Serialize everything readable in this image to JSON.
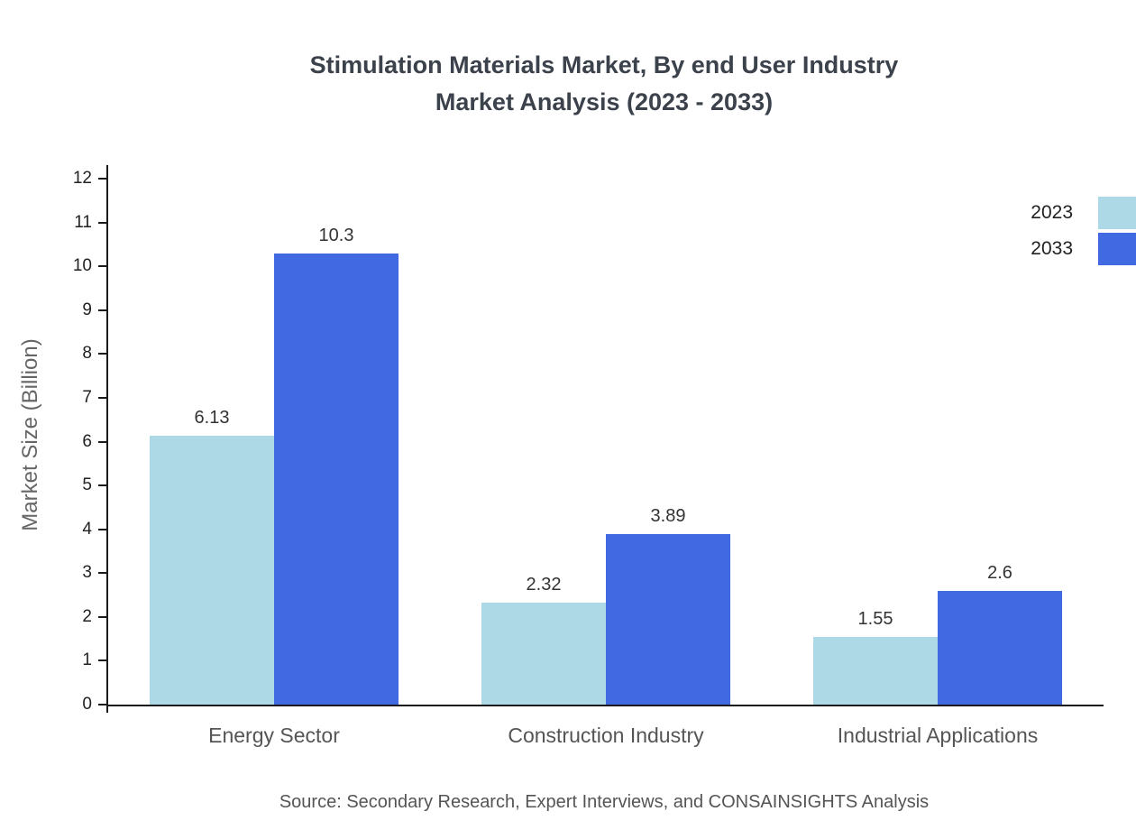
{
  "title": {
    "line1": "Stimulation Materials Market, By end User Industry",
    "line2": "Market Analysis (2023 - 2033)"
  },
  "source": "Source: Secondary Research, Expert Interviews, and CONSAINSIGHTS Analysis",
  "chart_data": {
    "type": "bar",
    "title": "Stimulation Materials Market, By end User Industry Market Analysis (2023 - 2033)",
    "categories": [
      "Energy Sector",
      "Construction Industry",
      "Industrial Applications"
    ],
    "series": [
      {
        "name": "2023",
        "color": "#ADD8E6",
        "values": [
          6.13,
          2.32,
          1.55
        ]
      },
      {
        "name": "2033",
        "color": "#4169E1",
        "values": [
          10.3,
          3.89,
          2.6
        ]
      }
    ],
    "xlabel": "",
    "ylabel": "Market Size (Billion)",
    "ylim": [
      0,
      12
    ],
    "ytick_step": 1,
    "grid": false,
    "legend_position": "top-right"
  }
}
